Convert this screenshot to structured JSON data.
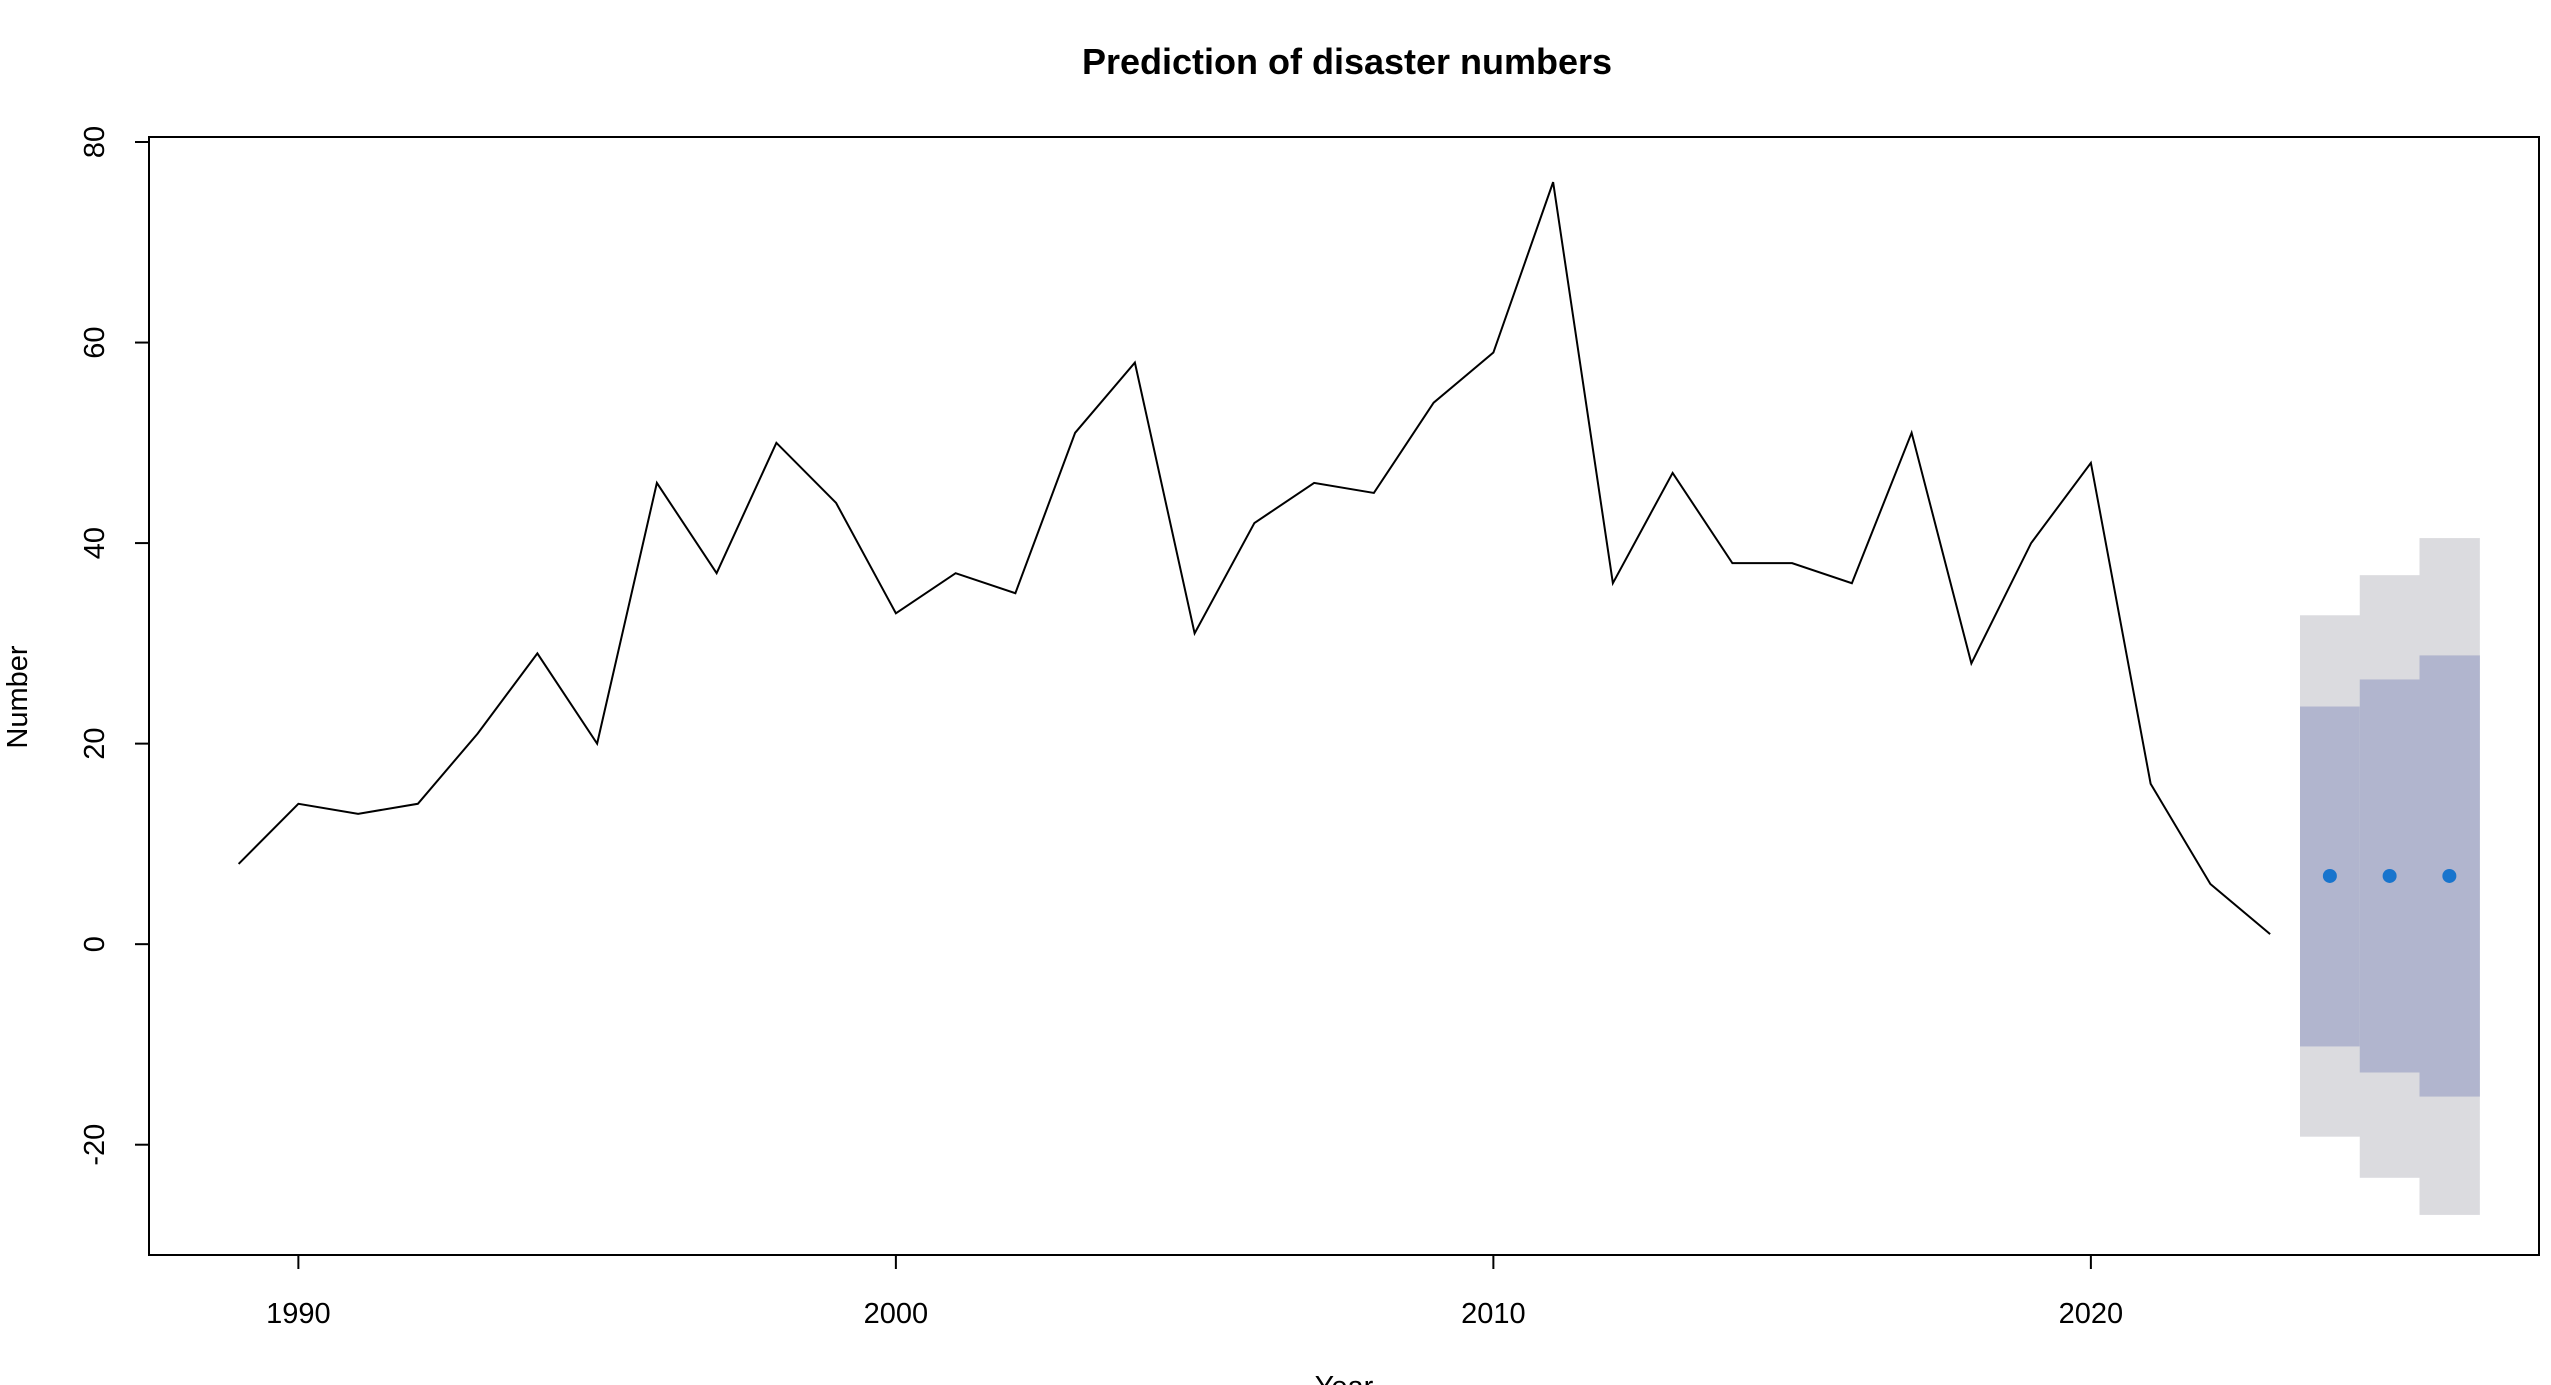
{
  "chart_data": {
    "type": "line",
    "title": "Prediction of disaster numbers",
    "xlabel": "Year",
    "ylabel": "Number",
    "xlim": [
      1987.5,
      2027.5
    ],
    "ylim": [
      -31,
      80.5
    ],
    "x_ticks": [
      1990,
      2000,
      2010,
      2020
    ],
    "y_ticks": [
      -20,
      0,
      20,
      40,
      60,
      80
    ],
    "grid": false,
    "legend": "none",
    "series": [
      {
        "x": [
          1989,
          1990,
          1991,
          1992,
          1993,
          1994,
          1995,
          1996,
          1997,
          1998,
          1999,
          2000,
          2001,
          2002,
          2003,
          2004,
          2005,
          2006,
          2007,
          2008,
          2009,
          2010,
          2011,
          2012,
          2013,
          2014,
          2015,
          2016,
          2017,
          2018,
          2019,
          2020,
          2021,
          2022,
          2023
        ],
        "values": [
          8,
          14,
          13,
          14,
          21,
          29,
          20,
          46,
          37,
          50,
          44,
          33,
          37,
          35,
          51,
          58,
          31,
          42,
          46,
          45,
          54,
          59,
          76,
          36,
          47,
          38,
          38,
          36,
          51,
          28,
          40,
          48,
          16,
          6,
          1
        ],
        "color": "#000000"
      }
    ],
    "forecast": {
      "x": [
        2024,
        2025,
        2026
      ],
      "point": [
        6.8,
        6.8,
        6.8
      ],
      "lo80": [
        -10.2,
        -12.8,
        -15.2
      ],
      "hi80": [
        23.7,
        26.4,
        28.8
      ],
      "lo95": [
        -19.2,
        -23.3,
        -27
      ],
      "hi95": [
        32.8,
        36.8,
        40.5
      ],
      "point_color": "#1874CD",
      "band80_color": "#B1B5CE",
      "band95_color": "#DBDBDF"
    }
  }
}
